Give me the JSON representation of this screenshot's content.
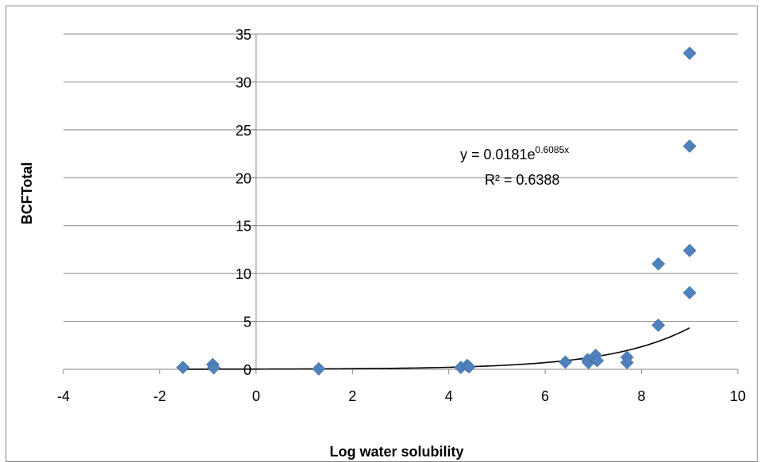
{
  "chart_data": {
    "type": "scatter",
    "title": "",
    "xlabel": "Log water solubility",
    "ylabel": "BCFTotal",
    "xlim": [
      -4,
      10
    ],
    "ylim": [
      0,
      35
    ],
    "x_ticks": [
      -4,
      -2,
      0,
      2,
      4,
      6,
      8,
      10
    ],
    "y_ticks": [
      0,
      5,
      10,
      15,
      20,
      25,
      30,
      35
    ],
    "grid": "horizontal",
    "legend": "none",
    "marker": "diamond",
    "colors": {
      "marker": "#4f81bd",
      "trendline": "#000000",
      "grid": "#868686"
    },
    "points": [
      {
        "x": -1.52,
        "y": 0.2
      },
      {
        "x": -0.9,
        "y": 0.5
      },
      {
        "x": -0.88,
        "y": 0.15
      },
      {
        "x": 1.3,
        "y": 0.05
      },
      {
        "x": 4.25,
        "y": 0.2
      },
      {
        "x": 4.38,
        "y": 0.4
      },
      {
        "x": 4.42,
        "y": 0.25
      },
      {
        "x": 6.42,
        "y": 0.75
      },
      {
        "x": 6.88,
        "y": 1.0
      },
      {
        "x": 6.9,
        "y": 0.7
      },
      {
        "x": 7.0,
        "y": 1.2
      },
      {
        "x": 7.05,
        "y": 1.45
      },
      {
        "x": 7.08,
        "y": 0.9
      },
      {
        "x": 7.7,
        "y": 1.25
      },
      {
        "x": 7.7,
        "y": 0.7
      },
      {
        "x": 8.35,
        "y": 4.6
      },
      {
        "x": 8.35,
        "y": 11.0
      },
      {
        "x": 9.0,
        "y": 8.0
      },
      {
        "x": 9.0,
        "y": 12.4
      },
      {
        "x": 9.0,
        "y": 23.3
      },
      {
        "x": 9.0,
        "y": 33.0
      }
    ],
    "trendline": {
      "type": "exponential",
      "a": 0.0181,
      "b": 0.6085,
      "x_range": [
        -1.52,
        9.0
      ],
      "equation_prefix": "y = 0.0181e",
      "equation_exponent": "0.6085x",
      "r2_label": "R² = 0.6388"
    }
  }
}
